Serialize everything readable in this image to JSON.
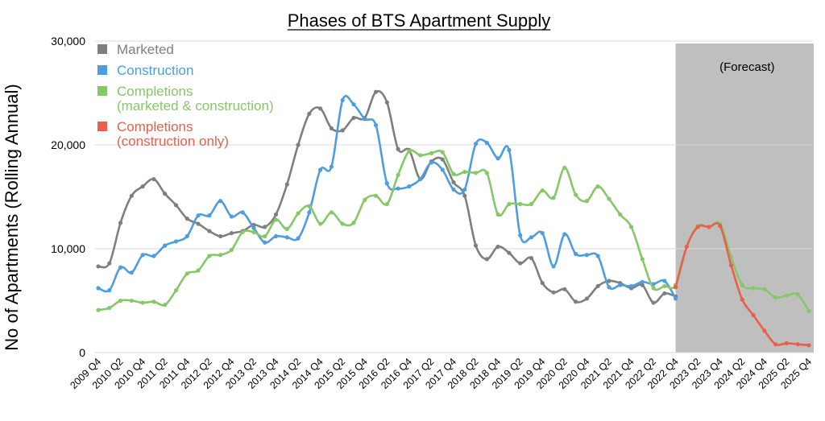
{
  "chart_data": {
    "type": "line",
    "title": "Phases of BTS Apartment Supply",
    "xlabel": "",
    "ylabel": "No of Apartments (Rolling Annual)",
    "ylim": [
      0,
      30000
    ],
    "yticks": [
      "0",
      "10,000",
      "20,000",
      "30,000"
    ],
    "grid": "horizontal",
    "legend_position": "top-left",
    "forecast_label": "(Forecast)",
    "forecast_range": [
      "2022 Q4",
      "2025 Q4"
    ],
    "categories": [
      "2009 Q4",
      "2010 Q1",
      "2010 Q2",
      "2010 Q3",
      "2010 Q4",
      "2011 Q1",
      "2011 Q2",
      "2011 Q3",
      "2011 Q4",
      "2012 Q1",
      "2012 Q2",
      "2012 Q3",
      "2012 Q4",
      "2013 Q1",
      "2013 Q2",
      "2013 Q3",
      "2013 Q4",
      "2014 Q1",
      "2014 Q2",
      "2014 Q3",
      "2014 Q4",
      "2015 Q1",
      "2015 Q2",
      "2015 Q3",
      "2015 Q4",
      "2016 Q1",
      "2016 Q2",
      "2016 Q3",
      "2016 Q4",
      "2017 Q1",
      "2017 Q2",
      "2017 Q3",
      "2017 Q4",
      "2018 Q1",
      "2018 Q2",
      "2018 Q3",
      "2018 Q4",
      "2019 Q1",
      "2019 Q2",
      "2019 Q3",
      "2019 Q4",
      "2020 Q1",
      "2020 Q2",
      "2020 Q3",
      "2020 Q4",
      "2021 Q1",
      "2021 Q2",
      "2021 Q3",
      "2021 Q4",
      "2022 Q1",
      "2022 Q2",
      "2022 Q3",
      "2022 Q4",
      "2023 Q1",
      "2023 Q2",
      "2023 Q3",
      "2023 Q4",
      "2024 Q1",
      "2024 Q2",
      "2024 Q3",
      "2024 Q4",
      "2025 Q1",
      "2025 Q2",
      "2025 Q3",
      "2025 Q4"
    ],
    "x_tick_labels": [
      "2009 Q4",
      "2010 Q2",
      "2010 Q4",
      "2011 Q2",
      "2011 Q4",
      "2012 Q2",
      "2012 Q4",
      "2013 Q2",
      "2013 Q4",
      "2014 Q2",
      "2014 Q4",
      "2015 Q2",
      "2015 Q4",
      "2016 Q2",
      "2016 Q4",
      "2017 Q2",
      "2017 Q4",
      "2018 Q2",
      "2018 Q4",
      "2019 Q2",
      "2019 Q4",
      "2020 Q2",
      "2020 Q4",
      "2021 Q2",
      "2021 Q4",
      "2022 Q2",
      "2022 Q4",
      "2023 Q2",
      "2023 Q4",
      "2024 Q2",
      "2024 Q4",
      "2025 Q2",
      "2025 Q4"
    ],
    "series": [
      {
        "name": "Marketed",
        "color": "#7f7f7f",
        "values": [
          8300,
          8600,
          12500,
          15100,
          16000,
          16700,
          15300,
          14200,
          12900,
          12400,
          11700,
          11200,
          11500,
          11700,
          12300,
          12100,
          13300,
          16200,
          20000,
          23000,
          23500,
          21600,
          21400,
          22600,
          22600,
          25100,
          24100,
          19600,
          19500,
          16700,
          18400,
          18600,
          16400,
          15100,
          10300,
          9000,
          10200,
          9600,
          8600,
          9100,
          6700,
          5800,
          6100,
          4900,
          5200,
          6400,
          6900,
          6700,
          6200,
          6500,
          4800,
          5700,
          5400,
          null,
          null,
          null,
          null,
          null,
          null,
          null,
          null,
          null,
          null,
          null,
          null
        ]
      },
      {
        "name": "Construction",
        "color": "#4d9de0",
        "values": [
          6200,
          6000,
          8200,
          7700,
          9400,
          9300,
          10300,
          10700,
          11200,
          13200,
          13200,
          14600,
          13100,
          13500,
          12000,
          10600,
          11200,
          11100,
          11000,
          13500,
          17600,
          17900,
          24300,
          23900,
          22500,
          21900,
          16300,
          15800,
          16000,
          16700,
          18300,
          17600,
          15700,
          15700,
          20100,
          20200,
          18700,
          19500,
          11300,
          11100,
          11500,
          8300,
          11400,
          9500,
          9400,
          9300,
          6300,
          6500,
          6400,
          6800,
          6600,
          6900,
          5200,
          null,
          null,
          null,
          null,
          null,
          null,
          null,
          null,
          null,
          null,
          null,
          null
        ]
      },
      {
        "name": "Completions\n(marketed & construction)",
        "color": "#86c767",
        "values": [
          4100,
          4300,
          5000,
          5000,
          4800,
          4900,
          4600,
          6000,
          7600,
          7900,
          9300,
          9400,
          9900,
          11600,
          11600,
          11200,
          12800,
          11900,
          13400,
          14100,
          12400,
          13500,
          12400,
          12500,
          14700,
          15100,
          14300,
          17100,
          19400,
          19000,
          19200,
          19300,
          17200,
          17400,
          17300,
          17300,
          13300,
          14300,
          14300,
          14300,
          15600,
          14900,
          17800,
          15200,
          14600,
          16000,
          14800,
          13300,
          12100,
          9000,
          6200,
          6400,
          6500,
          10200,
          12200,
          12100,
          12400,
          9200,
          6500,
          6200,
          6100,
          5300,
          5500,
          5600,
          4000
        ]
      },
      {
        "name": "Completions\n(construction only)",
        "color": "#e8604c",
        "values": [
          null,
          null,
          null,
          null,
          null,
          null,
          null,
          null,
          null,
          null,
          null,
          null,
          null,
          null,
          null,
          null,
          null,
          null,
          null,
          null,
          null,
          null,
          null,
          null,
          null,
          null,
          null,
          null,
          null,
          null,
          null,
          null,
          null,
          null,
          null,
          null,
          null,
          null,
          null,
          null,
          null,
          null,
          null,
          null,
          null,
          null,
          null,
          null,
          null,
          null,
          null,
          null,
          6300,
          10200,
          12100,
          12100,
          12200,
          8400,
          5100,
          3600,
          2100,
          800,
          900,
          800,
          700
        ]
      }
    ]
  }
}
